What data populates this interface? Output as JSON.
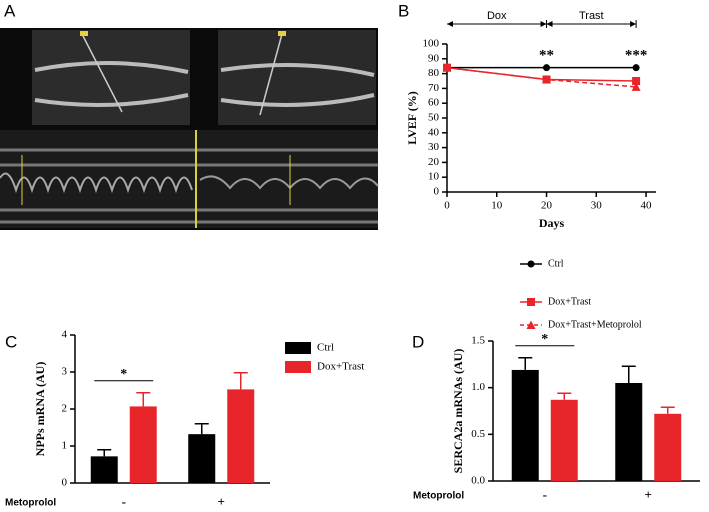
{
  "image_panel": {
    "label": "A"
  },
  "chart_data": [
    {
      "type": "line",
      "panel": "B",
      "xlabel": "Days",
      "ylabel": "LVEF (%)",
      "x": [
        0,
        20,
        38
      ],
      "xlim": [
        0,
        42
      ],
      "xticks": [
        0,
        10,
        20,
        30,
        40
      ],
      "ylim": [
        0,
        100
      ],
      "yticks": [
        0,
        10,
        20,
        30,
        40,
        50,
        60,
        70,
        80,
        90,
        100
      ],
      "series": [
        {
          "name": "Ctrl",
          "color": "#000000",
          "marker": "circle",
          "dashed": false,
          "values": [
            84,
            84,
            84
          ]
        },
        {
          "name": "Dox+Trast",
          "color": "#e8252a",
          "marker": "square",
          "dashed": false,
          "values": [
            84,
            76,
            75
          ]
        },
        {
          "name": "Dox+Trast+Metoprolol",
          "color": "#e8252a",
          "marker": "triangle",
          "dashed": true,
          "values": [
            84,
            76,
            71
          ]
        }
      ],
      "periods": [
        {
          "label": "Dox",
          "start": 0,
          "end": 20
        },
        {
          "label": "Trast",
          "start": 20,
          "end": 38
        }
      ],
      "annotations": [
        {
          "text": "**",
          "x": 20
        },
        {
          "text": "***",
          "x": 38
        }
      ]
    },
    {
      "type": "bar",
      "panel": "C",
      "ylabel": "NPPs mRNA (AU)",
      "row_label": "Metoprolol",
      "categories": [
        "-",
        "+"
      ],
      "ylim": [
        0,
        4
      ],
      "yticks": [
        0,
        1,
        2,
        3,
        4
      ],
      "legend": true,
      "series": [
        {
          "name": "Ctrl",
          "color": "#000000",
          "values": [
            0.72,
            1.32
          ],
          "errors": [
            0.18,
            0.28
          ]
        },
        {
          "name": "Dox+Trast",
          "color": "#e8252a",
          "values": [
            2.07,
            2.53
          ],
          "errors": [
            0.37,
            0.45
          ]
        }
      ],
      "significance": [
        {
          "label": "*",
          "category": "-"
        }
      ]
    },
    {
      "type": "bar",
      "panel": "D",
      "ylabel": "SERCA2a mRNAs (AU)",
      "row_label": "Metoprolol",
      "categories": [
        "-",
        "+"
      ],
      "ylim": [
        0,
        1.5
      ],
      "yticks": [
        {
          "value": 0,
          "label": "0.0"
        },
        0.5,
        {
          "value": 1,
          "label": "1.0"
        },
        1.5
      ],
      "legend": false,
      "series": [
        {
          "name": "Ctrl",
          "color": "#000000",
          "values": [
            1.19,
            1.05
          ],
          "errors": [
            0.13,
            0.18
          ]
        },
        {
          "name": "Dox+Trast",
          "color": "#e8252a",
          "values": [
            0.87,
            0.72
          ],
          "errors": [
            0.07,
            0.07
          ]
        }
      ],
      "significance": [
        {
          "label": "*",
          "category": "-"
        }
      ]
    }
  ]
}
